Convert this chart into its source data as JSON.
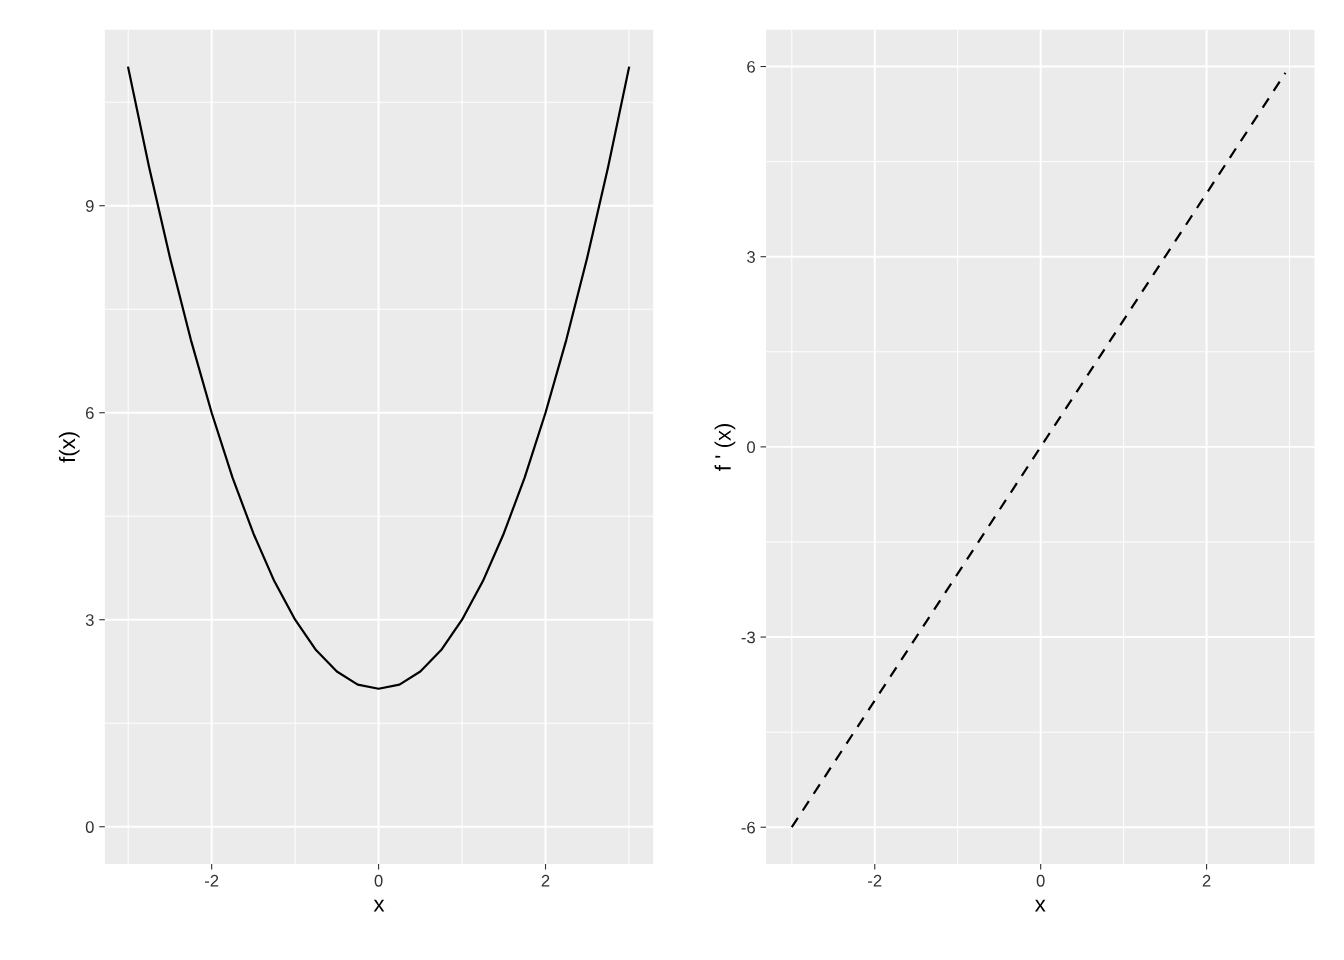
{
  "chart_data": [
    {
      "type": "line",
      "xlabel": "x",
      "ylabel": "f(x)",
      "grid": true,
      "line_style": "solid",
      "xlim": [
        -3.28,
        3.29
      ],
      "ylim": [
        -0.54,
        11.55
      ],
      "xticks": [
        -2,
        0,
        2
      ],
      "yticks": [
        0,
        3,
        6,
        9
      ],
      "x": [
        -3,
        -2.75,
        -2.5,
        -2.25,
        -2,
        -1.75,
        -1.5,
        -1.25,
        -1,
        -0.75,
        -0.5,
        -0.25,
        0,
        0.25,
        0.5,
        0.75,
        1,
        1.25,
        1.5,
        1.75,
        2,
        2.25,
        2.5,
        2.75,
        3
      ],
      "series": [
        {
          "color": "#000000",
          "values": [
            11,
            9.56,
            8.25,
            7.06,
            6,
            5.06,
            4.25,
            3.56,
            3,
            2.56,
            2.25,
            2.06,
            2,
            2.06,
            2.25,
            2.56,
            3,
            3.56,
            4.25,
            5.06,
            6,
            7.06,
            8.25,
            9.56,
            11
          ]
        }
      ]
    },
    {
      "type": "line",
      "xlabel": "x",
      "ylabel": "f ' (x)",
      "grid": true,
      "line_style": "dashed",
      "xlim": [
        -3.31,
        3.3
      ],
      "ylim": [
        -6.58,
        6.58
      ],
      "xticks": [
        -2,
        0,
        2
      ],
      "yticks": [
        -6,
        -3,
        0,
        3,
        6
      ],
      "x": [
        -3,
        -1.5,
        0,
        1.5,
        2.95
      ],
      "series": [
        {
          "color": "#000000",
          "values": [
            -6,
            -3,
            0,
            3,
            5.9
          ]
        }
      ]
    }
  ]
}
